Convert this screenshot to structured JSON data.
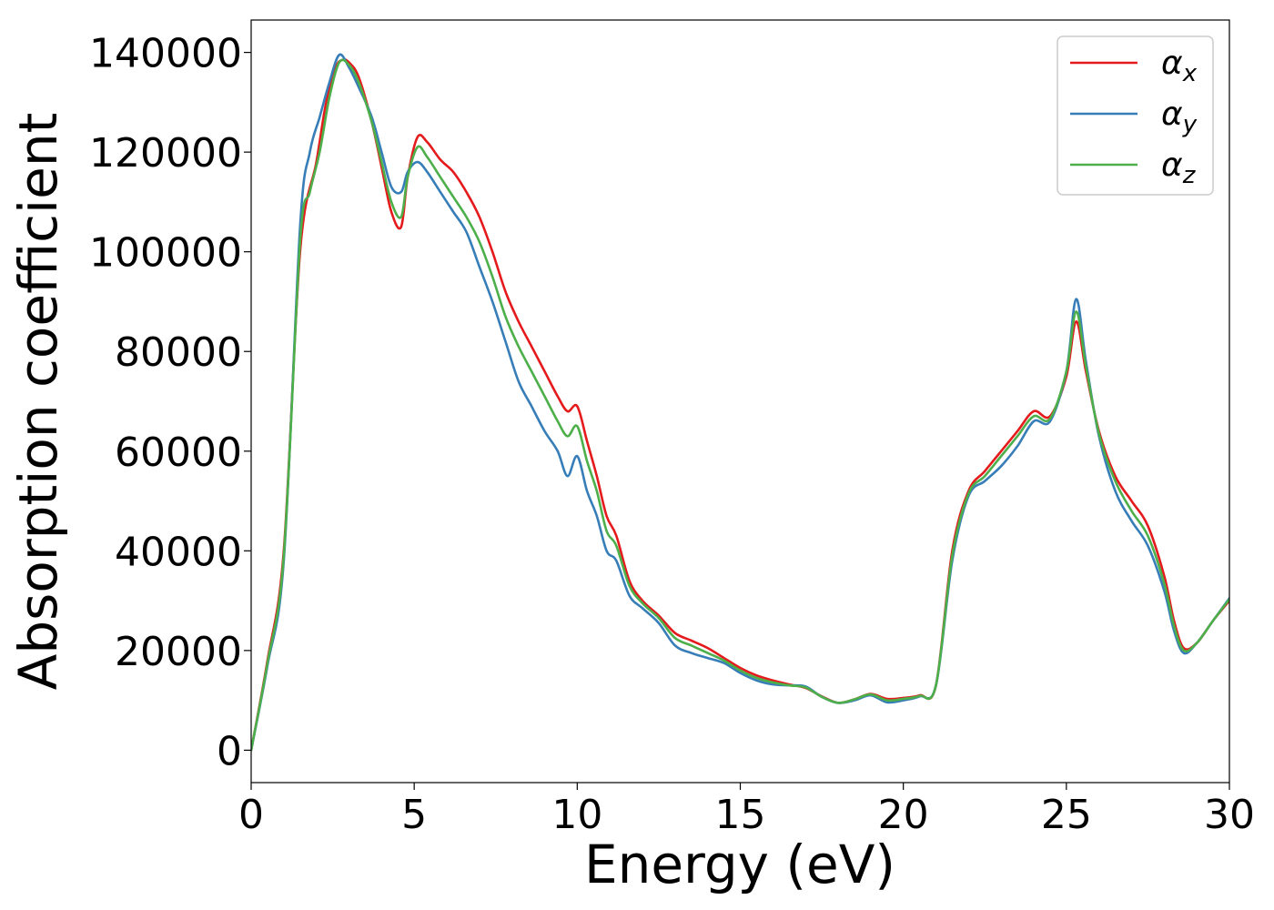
{
  "chart_data": {
    "type": "line",
    "title": "",
    "xlabel": "Energy (eV)",
    "ylabel": "Absorption coefficient",
    "xlim": [
      0,
      30
    ],
    "ylim": [
      -6500,
      146500
    ],
    "xticks": [
      0,
      5,
      10,
      15,
      20,
      25,
      30
    ],
    "yticks": [
      0,
      20000,
      40000,
      60000,
      80000,
      100000,
      120000,
      140000
    ],
    "grid": false,
    "legend_position": "top-right",
    "series": [
      {
        "name": "αx",
        "label_base": "α",
        "label_sub": "x",
        "color": "#e41a1c",
        "x": [
          0,
          0.5,
          1.0,
          1.5,
          2.0,
          2.3,
          2.6,
          2.8,
          3.0,
          3.3,
          3.7,
          4.0,
          4.3,
          4.6,
          4.8,
          5.1,
          5.4,
          5.8,
          6.2,
          6.6,
          7.0,
          7.4,
          7.8,
          8.2,
          8.6,
          9.0,
          9.4,
          9.7,
          10.0,
          10.3,
          10.6,
          10.9,
          11.2,
          11.6,
          12.0,
          12.5,
          13.0,
          13.5,
          14.0,
          14.5,
          15.0,
          15.5,
          16.0,
          16.5,
          17.0,
          17.5,
          18.0,
          18.5,
          19.0,
          19.5,
          20.0,
          20.5,
          21.0,
          21.5,
          22.0,
          22.5,
          23.0,
          23.5,
          24.0,
          24.5,
          25.0,
          25.3,
          25.6,
          26.0,
          26.5,
          27.0,
          27.5,
          28.0,
          28.3,
          28.6,
          29.0,
          29.5,
          30.0
        ],
        "values": [
          0,
          18000,
          40000,
          100000,
          118000,
          130000,
          137000,
          138500,
          138000,
          135000,
          126000,
          117000,
          108000,
          105000,
          115000,
          123000,
          122000,
          118500,
          116000,
          112000,
          107000,
          100000,
          92000,
          86000,
          81000,
          76000,
          71000,
          68000,
          69000,
          62000,
          55000,
          47000,
          43000,
          34000,
          30000,
          27000,
          23500,
          22000,
          20500,
          18500,
          16500,
          15000,
          14000,
          13200,
          12500,
          10800,
          9500,
          10200,
          11300,
          10300,
          10500,
          11000,
          13000,
          40000,
          52000,
          56000,
          60000,
          64000,
          68000,
          67000,
          75000,
          86000,
          76000,
          64000,
          55000,
          50000,
          45000,
          35000,
          26000,
          20500,
          21500,
          26000,
          30000
        ]
      },
      {
        "name": "αy",
        "label_base": "α",
        "label_sub": "y",
        "color": "#377eb8",
        "x": [
          0,
          0.5,
          1.0,
          1.5,
          1.8,
          2.1,
          2.4,
          2.7,
          3.0,
          3.3,
          3.7,
          4.0,
          4.3,
          4.6,
          4.8,
          5.1,
          5.4,
          5.8,
          6.2,
          6.6,
          7.0,
          7.4,
          7.8,
          8.2,
          8.6,
          9.0,
          9.4,
          9.7,
          10.0,
          10.3,
          10.6,
          10.9,
          11.2,
          11.6,
          12.0,
          12.5,
          13.0,
          13.5,
          14.0,
          14.5,
          15.0,
          15.5,
          16.0,
          16.5,
          17.0,
          17.5,
          18.0,
          18.5,
          19.0,
          19.5,
          20.0,
          20.5,
          21.0,
          21.5,
          22.0,
          22.5,
          23.0,
          23.5,
          24.0,
          24.5,
          25.0,
          25.3,
          25.6,
          26.0,
          26.5,
          27.0,
          27.5,
          28.0,
          28.3,
          28.6,
          29.0,
          29.5,
          30.0
        ],
        "values": [
          0,
          17000,
          38000,
          105000,
          120000,
          127000,
          134000,
          139500,
          137000,
          133000,
          127000,
          120000,
          113000,
          112000,
          116000,
          118000,
          116000,
          112000,
          108000,
          104000,
          97000,
          90000,
          82000,
          74000,
          69000,
          64000,
          60000,
          55000,
          59000,
          52000,
          47000,
          40000,
          38000,
          31000,
          28500,
          25500,
          21000,
          19500,
          18500,
          17500,
          15500,
          14000,
          13200,
          13000,
          12800,
          10700,
          9500,
          10000,
          11000,
          9600,
          10000,
          10800,
          13000,
          38000,
          51000,
          54000,
          57000,
          61000,
          66000,
          66000,
          76000,
          90500,
          78000,
          63000,
          52000,
          46000,
          41000,
          32000,
          24000,
          19500,
          21500,
          26000,
          30500
        ]
      },
      {
        "name": "αz",
        "label_base": "α",
        "label_sub": "z",
        "color": "#4daf4a",
        "x": [
          0,
          0.5,
          1.0,
          1.5,
          1.8,
          2.1,
          2.4,
          2.7,
          3.0,
          3.3,
          3.7,
          4.0,
          4.3,
          4.6,
          4.8,
          5.1,
          5.4,
          5.8,
          6.2,
          6.6,
          7.0,
          7.4,
          7.8,
          8.2,
          8.6,
          9.0,
          9.4,
          9.7,
          10.0,
          10.3,
          10.6,
          10.9,
          11.2,
          11.6,
          12.0,
          12.5,
          13.0,
          13.5,
          14.0,
          14.5,
          15.0,
          15.5,
          16.0,
          16.5,
          17.0,
          17.5,
          18.0,
          18.5,
          19.0,
          19.5,
          20.0,
          20.5,
          21.0,
          21.5,
          22.0,
          22.5,
          23.0,
          23.5,
          24.0,
          24.5,
          25.0,
          25.3,
          25.6,
          26.0,
          26.5,
          27.0,
          27.5,
          28.0,
          28.3,
          28.6,
          29.0,
          29.5,
          30.0
        ],
        "values": [
          0,
          17500,
          39000,
          102000,
          112000,
          120000,
          131000,
          138000,
          137500,
          134000,
          126000,
          118000,
          110000,
          107000,
          115000,
          121000,
          119000,
          115000,
          111000,
          107000,
          102000,
          95000,
          87000,
          81000,
          76000,
          71000,
          66000,
          63000,
          65000,
          58000,
          52000,
          44000,
          41000,
          33000,
          29500,
          26500,
          22500,
          21000,
          19500,
          18000,
          16000,
          14500,
          13600,
          13000,
          12600,
          10700,
          9500,
          10200,
          11200,
          10000,
          10300,
          10900,
          13000,
          39000,
          51500,
          55000,
          59000,
          63000,
          67000,
          66500,
          76000,
          88000,
          77000,
          63500,
          54000,
          48000,
          43000,
          33500,
          25000,
          20000,
          21500,
          26000,
          30300
        ]
      }
    ]
  }
}
